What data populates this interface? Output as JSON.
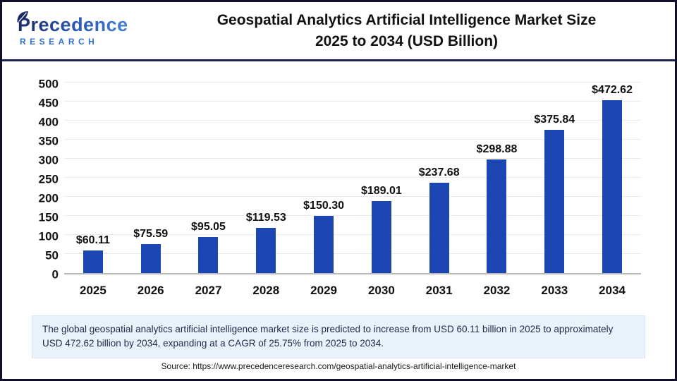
{
  "header": {
    "brand_top": "Precedence",
    "brand_bottom": "RESEARCH",
    "title_line1": "Geospatial Analytics Artificial Intelligence Market Size",
    "title_line2": "2025 to 2034 (USD Billion)"
  },
  "chart_data": {
    "type": "bar",
    "title": "Geospatial Analytics Artificial Intelligence Market Size 2025 to 2034 (USD Billion)",
    "categories": [
      "2025",
      "2026",
      "2027",
      "2028",
      "2029",
      "2030",
      "2031",
      "2032",
      "2033",
      "2034"
    ],
    "values": [
      60.11,
      75.59,
      95.05,
      119.53,
      150.3,
      189.01,
      237.68,
      298.88,
      375.84,
      472.62
    ],
    "value_labels": [
      "$60.11",
      "$75.59",
      "$95.05",
      "$119.53",
      "$150.30",
      "$189.01",
      "$237.68",
      "$298.88",
      "$375.84",
      "$472.62"
    ],
    "xlabel": "",
    "ylabel": "",
    "ylim": [
      0,
      500
    ],
    "ytick_step": 50,
    "grid": true,
    "legend": false,
    "bar_color": "#1b46b4"
  },
  "footnote": "The global geospatial analytics artificial intelligence market size is predicted to increase from USD 60.11 billion in 2025 to approximately USD 472.62 billion by 2034, expanding at a CAGR of 25.75% from 2025 to 2034.",
  "source": "Source: https://www.precedenceresearch.com/geospatial-analytics-artificial-intelligence-market",
  "colors": {
    "bar": "#1b46b4",
    "header_divider": "#1b2150",
    "footnote_bg": "#e9f1fb",
    "footnote_text": "#1c2b4a",
    "brand_blue": "#2e6fd0",
    "grid": "#ebebeb",
    "axis_baseline": "#b9b9b9"
  }
}
